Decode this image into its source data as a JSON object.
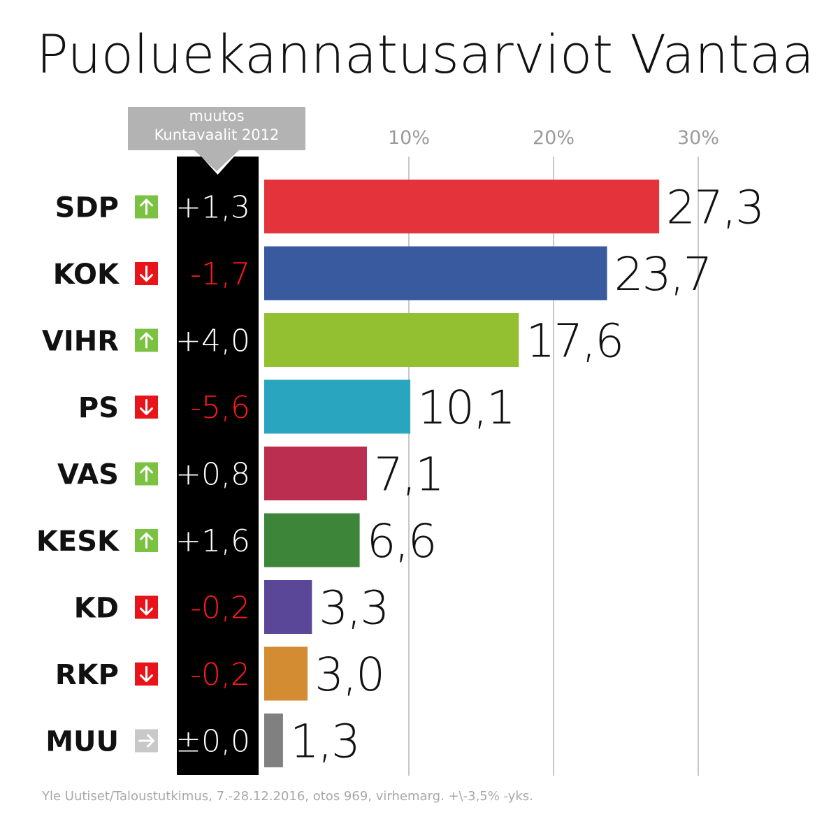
{
  "title": "Puoluekannatusarviot Vantaa",
  "change_header": {
    "line1": "muutos",
    "line2": "Kuntavaalit 2012"
  },
  "footer": "Yle Uutiset/Taloustutkimus, 7.-28.12.2016, otos 969, virhemarg. +\\-3,5% -yks.",
  "colors": {
    "up": "#7cc242",
    "down": "#e8141a",
    "neutral": "#c8c8c8"
  },
  "chart_data": {
    "type": "bar",
    "orientation": "horizontal",
    "title": "Puoluekannatusarviot Vantaa",
    "xlim": [
      0,
      30
    ],
    "ticks": [
      10,
      20,
      30
    ],
    "tick_labels": [
      "10%",
      "20%",
      "30%"
    ],
    "grid": true,
    "categories": [
      "SDP",
      "KOK",
      "VIHR",
      "PS",
      "VAS",
      "KESK",
      "KD",
      "RKP",
      "MUU"
    ],
    "values": [
      27.3,
      23.7,
      17.6,
      10.1,
      7.1,
      6.6,
      3.3,
      3.0,
      1.3
    ],
    "value_labels": [
      "27,3",
      "23,7",
      "17,6",
      "10,1",
      "7,1",
      "6,6",
      "3,3",
      "3,0",
      "1,3"
    ],
    "changes": [
      "+1,3",
      "-1,7",
      "+4,0",
      "-5,6",
      "+0,8",
      "+1,6",
      "-0,2",
      "-0,2",
      "±0,0"
    ],
    "directions": [
      "up",
      "down",
      "up",
      "down",
      "up",
      "up",
      "down",
      "down",
      "neutral"
    ],
    "bar_colors": [
      "#e4333a",
      "#3a5aa0",
      "#92c031",
      "#2aa5c0",
      "#bb2e50",
      "#3d8538",
      "#5a4797",
      "#d38c32",
      "#808080"
    ]
  }
}
